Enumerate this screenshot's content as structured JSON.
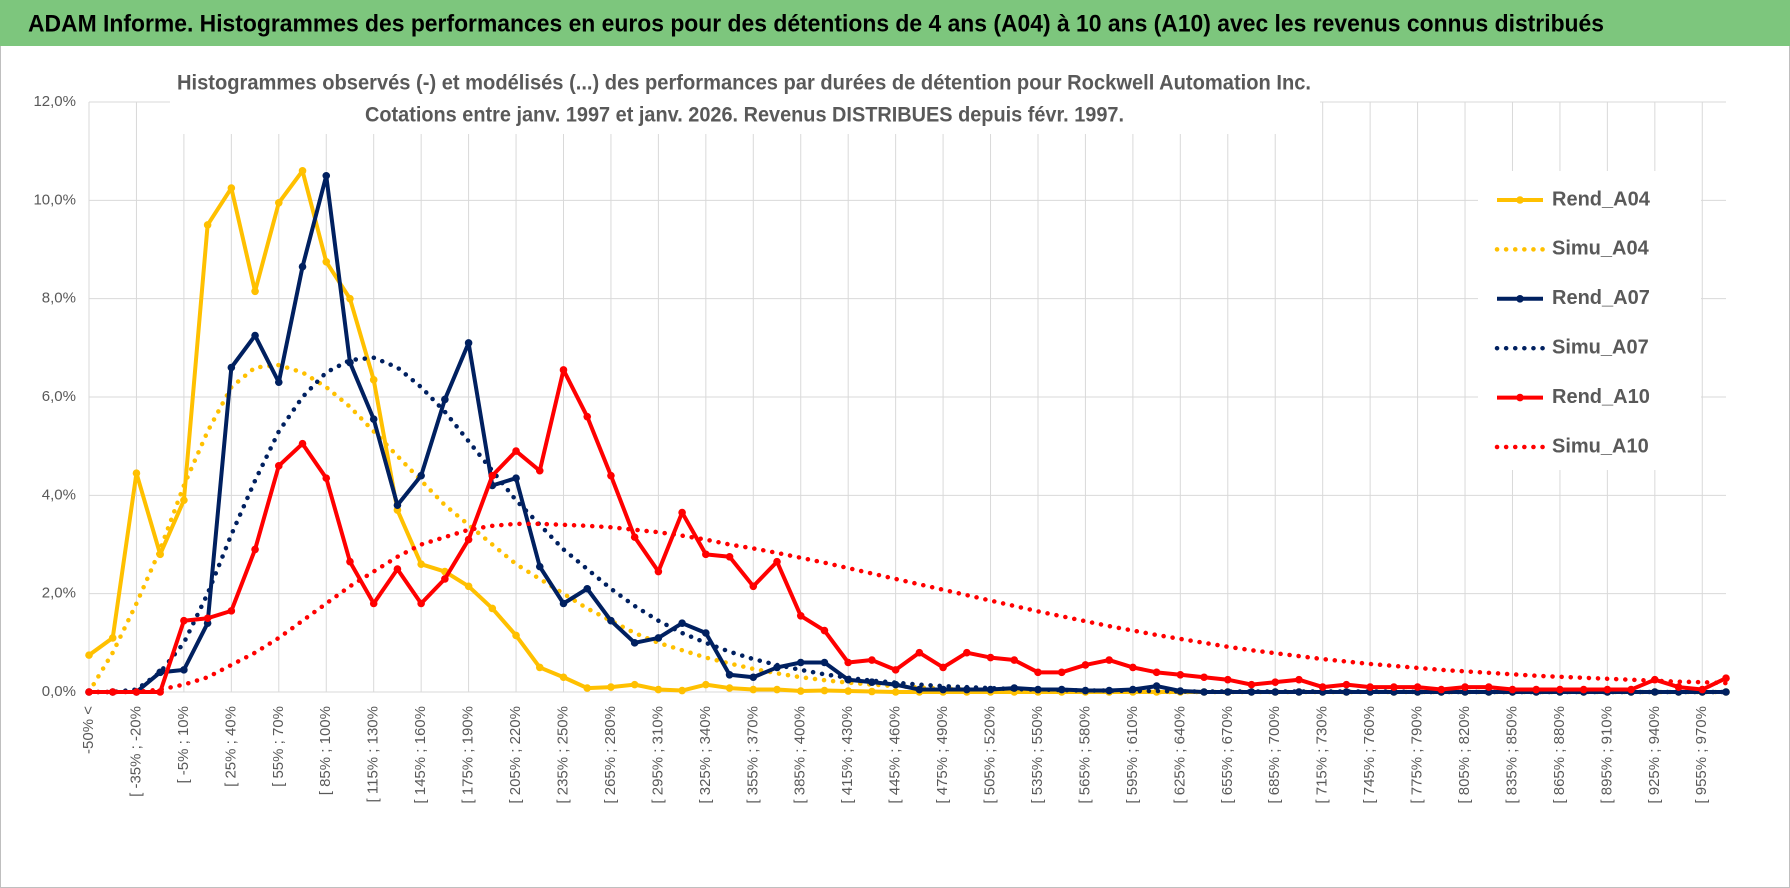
{
  "chart_data": {
    "type": "line",
    "title": "ADAM Informe. Histogrammes des performances en euros pour des détentions de 4 ans (A04) à 10 ans (A10) avec les revenus connus distribués",
    "subtitle_lines": [
      "Histogrammes observés (-) et modélisés (...) des performances par durées de détention pour Rockwell Automation Inc.",
      "Cotations entre janv. 1997 et janv. 2026. Revenus DISTRIBUES depuis févr. 1997."
    ],
    "categories": [
      "-50% <",
      null,
      "[ -35% ; -20%",
      null,
      "[ -5% ; 10%",
      null,
      "[ 25% ; 40%",
      null,
      "[ 55% ; 70%",
      null,
      "[ 85% ; 100%",
      null,
      "[ 115% ; 130%",
      null,
      "[ 145% ; 160%",
      null,
      "[ 175% ; 190%",
      null,
      "[ 205% ; 220%",
      null,
      "[ 235% ; 250%",
      null,
      "[ 265% ; 280%",
      null,
      "[ 295% ; 310%",
      null,
      "[ 325% ; 340%",
      null,
      "[ 355% ; 370%",
      null,
      "[ 385% ; 400%",
      null,
      "[ 415% ; 430%",
      null,
      "[ 445% ; 460%",
      null,
      "[ 475% ; 490%",
      null,
      "[ 505% ; 520%",
      null,
      "[ 535% ; 550%",
      null,
      "[ 565% ; 580%",
      null,
      "[ 595% ; 610%",
      null,
      "[ 625% ; 640%",
      null,
      "[ 655% ; 670%",
      null,
      "[ 685% ; 700%",
      null,
      "[ 715% ; 730%",
      null,
      "[ 745% ; 760%",
      null,
      "[ 775% ; 790%",
      null,
      "[ 805% ; 820%",
      null,
      "[ 835% ; 850%",
      null,
      "[ 865% ; 880%",
      null,
      "[ 895% ; 910%",
      null,
      "[ 925% ; 940%",
      null,
      "[ 955% ; 970%",
      null
    ],
    "ylim": [
      0,
      12
    ],
    "yticks": [
      {
        "value": 0,
        "label": "0,0%"
      },
      {
        "value": 2,
        "label": "2,0%"
      },
      {
        "value": 4,
        "label": "4,0%"
      },
      {
        "value": 6,
        "label": "6,0%"
      },
      {
        "value": 8,
        "label": "8,0%"
      },
      {
        "value": 10,
        "label": "10,0%"
      },
      {
        "value": 12,
        "label": "12,0%"
      }
    ],
    "grid": true,
    "legend": "right",
    "series": [
      {
        "name": "Rend_A04",
        "color": "#FFC000",
        "style": "solid",
        "markers": true,
        "values": [
          0.75,
          1.1,
          4.45,
          2.8,
          3.9,
          9.5,
          10.25,
          8.15,
          9.95,
          10.6,
          8.75,
          8.0,
          6.35,
          3.7,
          2.6,
          2.45,
          2.15,
          1.7,
          1.15,
          0.5,
          0.3,
          0.08,
          0.1,
          0.15,
          0.05,
          0.03,
          0.15,
          0.08,
          0.05,
          0.05,
          0.02,
          0.03,
          0.02,
          0.01,
          0,
          0,
          0,
          0,
          0,
          0,
          0,
          0,
          0,
          0,
          0,
          0,
          0,
          0,
          0,
          0,
          0,
          0,
          0,
          0,
          0,
          0,
          0,
          0,
          0,
          0,
          0,
          0,
          0,
          0,
          0,
          0,
          0,
          0,
          0,
          0
        ]
      },
      {
        "name": "Simu_A04",
        "color": "#FFC000",
        "style": "dotted",
        "markers": false,
        "values": [
          0,
          0.8,
          1.8,
          2.9,
          4.2,
          5.3,
          6.2,
          6.6,
          6.65,
          6.5,
          6.2,
          5.8,
          5.3,
          4.8,
          4.3,
          3.8,
          3.4,
          3.0,
          2.6,
          2.3,
          2.0,
          1.7,
          1.45,
          1.2,
          1.0,
          0.85,
          0.7,
          0.58,
          0.47,
          0.38,
          0.3,
          0.24,
          0.19,
          0.15,
          0.12,
          0.09,
          0.07,
          0.05,
          0.04,
          0.03,
          0.02,
          0.01,
          0.01,
          0.01,
          0.01,
          0,
          0,
          0,
          0,
          0,
          0,
          0,
          0,
          0,
          0,
          0,
          0,
          0,
          0,
          0,
          0,
          0,
          0,
          0,
          0,
          0,
          0,
          0,
          0,
          0
        ]
      },
      {
        "name": "Rend_A07",
        "color": "#002060",
        "style": "solid",
        "markers": true,
        "values": [
          0,
          0,
          0,
          0.4,
          0.45,
          1.4,
          6.6,
          7.25,
          6.3,
          8.65,
          10.5,
          6.7,
          5.55,
          3.8,
          4.4,
          5.95,
          7.1,
          4.2,
          4.35,
          2.55,
          1.8,
          2.1,
          1.45,
          1.0,
          1.1,
          1.4,
          1.2,
          0.35,
          0.3,
          0.5,
          0.6,
          0.6,
          0.25,
          0.2,
          0.15,
          0.05,
          0.05,
          0.05,
          0.05,
          0.08,
          0.05,
          0.05,
          0.03,
          0.03,
          0.05,
          0.12,
          0.02,
          0,
          0,
          0,
          0,
          0,
          0,
          0,
          0,
          0,
          0,
          0,
          0,
          0,
          0,
          0,
          0,
          0,
          0,
          0,
          0,
          0,
          0,
          0
        ]
      },
      {
        "name": "Simu_A07",
        "color": "#002060",
        "style": "dotted",
        "markers": false,
        "values": [
          0,
          0,
          0.05,
          0.4,
          1.0,
          2.0,
          3.2,
          4.3,
          5.3,
          6.0,
          6.5,
          6.75,
          6.8,
          6.6,
          6.2,
          5.7,
          5.1,
          4.5,
          3.9,
          3.4,
          2.9,
          2.5,
          2.1,
          1.75,
          1.45,
          1.2,
          1.0,
          0.82,
          0.67,
          0.55,
          0.45,
          0.36,
          0.29,
          0.23,
          0.19,
          0.15,
          0.12,
          0.1,
          0.08,
          0.06,
          0.05,
          0.04,
          0.03,
          0.03,
          0.02,
          0.02,
          0.01,
          0.01,
          0.01,
          0.01,
          0.01,
          0.01,
          0.01,
          0.01,
          0.01,
          0.01,
          0,
          0,
          0,
          0,
          0,
          0,
          0,
          0,
          0,
          0,
          0,
          0,
          0,
          0
        ]
      },
      {
        "name": "Rend_A10",
        "color": "#FF0000",
        "style": "solid",
        "markers": true,
        "values": [
          0,
          0,
          0,
          0,
          1.45,
          1.5,
          1.65,
          2.9,
          4.6,
          5.05,
          4.35,
          2.65,
          1.8,
          2.5,
          1.8,
          2.3,
          3.1,
          4.4,
          4.9,
          4.5,
          6.55,
          5.6,
          4.4,
          3.15,
          2.45,
          3.65,
          2.8,
          2.75,
          2.15,
          2.65,
          1.55,
          1.25,
          0.6,
          0.65,
          0.45,
          0.8,
          0.5,
          0.8,
          0.7,
          0.65,
          0.4,
          0.4,
          0.55,
          0.65,
          0.5,
          0.4,
          0.35,
          0.3,
          0.25,
          0.15,
          0.2,
          0.25,
          0.1,
          0.15,
          0.1,
          0.1,
          0.1,
          0.05,
          0.1,
          0.1,
          0.05,
          0.05,
          0.05,
          0.05,
          0.05,
          0.05,
          0.25,
          0.1,
          0.05,
          0.28
        ]
      },
      {
        "name": "Simu_A10",
        "color": "#FF0000",
        "style": "dotted",
        "markers": false,
        "values": [
          0,
          0,
          0,
          0.05,
          0.15,
          0.3,
          0.55,
          0.8,
          1.1,
          1.45,
          1.8,
          2.15,
          2.45,
          2.75,
          3.0,
          3.15,
          3.3,
          3.38,
          3.42,
          3.42,
          3.4,
          3.38,
          3.35,
          3.3,
          3.25,
          3.18,
          3.1,
          3.0,
          2.92,
          2.83,
          2.73,
          2.63,
          2.52,
          2.41,
          2.3,
          2.19,
          2.08,
          1.97,
          1.86,
          1.75,
          1.64,
          1.54,
          1.44,
          1.34,
          1.25,
          1.16,
          1.08,
          1.0,
          0.92,
          0.85,
          0.79,
          0.73,
          0.67,
          0.62,
          0.57,
          0.53,
          0.49,
          0.45,
          0.42,
          0.39,
          0.36,
          0.33,
          0.31,
          0.29,
          0.27,
          0.25,
          0.23,
          0.21,
          0.2,
          0.18
        ]
      }
    ]
  }
}
